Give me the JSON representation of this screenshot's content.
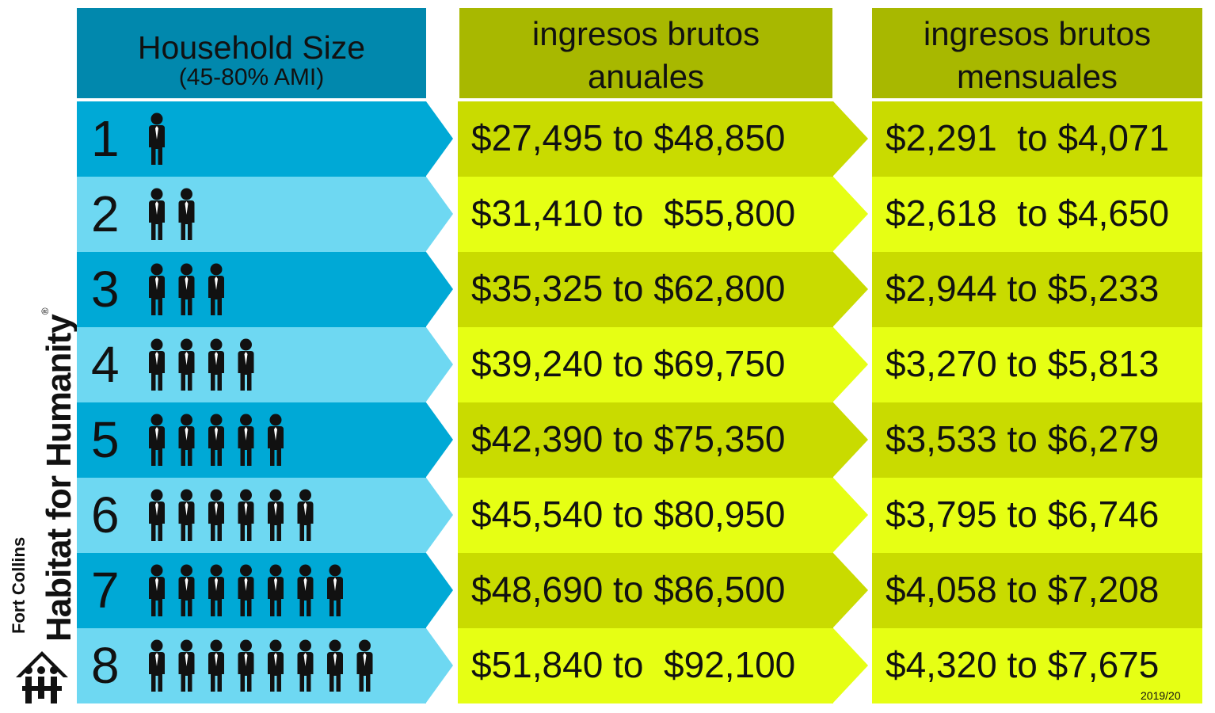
{
  "header": {
    "size_title": "Household Size",
    "size_subtitle": "(45-80% AMI)",
    "annual_line1": "ingresos brutos",
    "annual_line2": "anuales",
    "monthly_line1": "ingresos brutos",
    "monthly_line2": "mensuales"
  },
  "logo": {
    "sub": "Fort Collins",
    "main": "Habitat for Humanity",
    "reg": "®"
  },
  "rows": [
    {
      "size": "1",
      "people": 1,
      "annual": "$27,495 to $48,850",
      "monthly": "$2,291  to $4,071"
    },
    {
      "size": "2",
      "people": 2,
      "annual": "$31,410 to  $55,800",
      "monthly": "$2,618  to $4,650"
    },
    {
      "size": "3",
      "people": 3,
      "annual": "$35,325 to $62,800",
      "monthly": "$2,944 to $5,233"
    },
    {
      "size": "4",
      "people": 4,
      "annual": "$39,240 to $69,750",
      "monthly": "$3,270 to $5,813"
    },
    {
      "size": "5",
      "people": 5,
      "annual": "$42,390 to $75,350",
      "monthly": "$3,533 to $6,279"
    },
    {
      "size": "6",
      "people": 6,
      "annual": "$45,540 to $80,950",
      "monthly": "$3,795 to $6,746"
    },
    {
      "size": "7",
      "people": 7,
      "annual": "$48,690 to $86,500",
      "monthly": "$4,058 to $7,208"
    },
    {
      "size": "8",
      "people": 8,
      "annual": "$51,840 to  $92,100",
      "monthly": "$4,320 to $7,675"
    }
  ],
  "footer": {
    "year": "2019/20"
  },
  "colors": {
    "size_dark": "#00a9d6",
    "size_light": "#6ed8f2",
    "size_header": "#0188ad",
    "income_dark": "#c9db00",
    "income_light": "#e6ff14",
    "income_header": "#a8b800"
  },
  "icons": {
    "person": "person-icon",
    "logo": "habitat-logo-icon"
  }
}
